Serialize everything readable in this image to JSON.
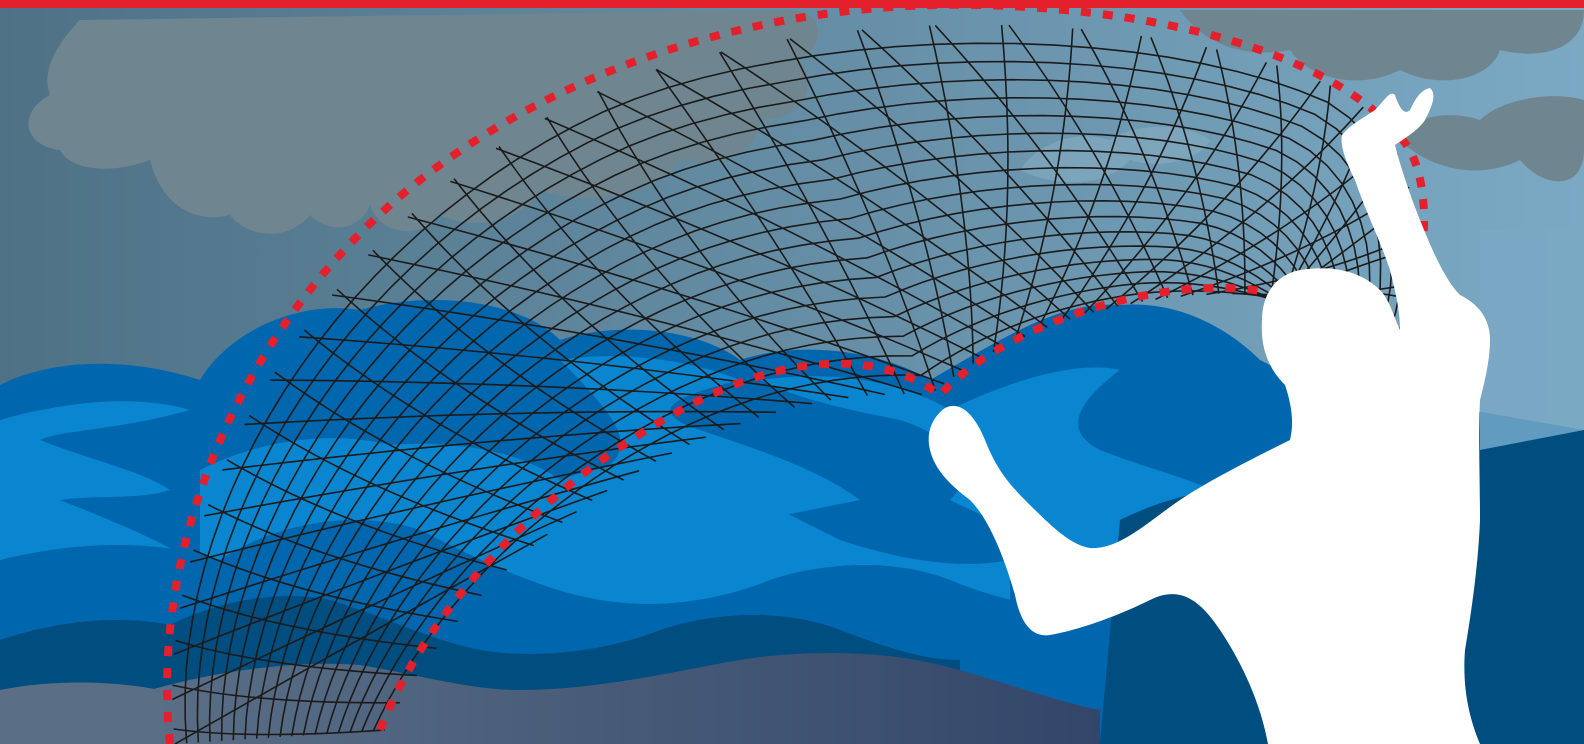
{
  "illustration": {
    "subject": "fisherman-casting-net",
    "colors": {
      "sky_left": "#4e7185",
      "sky_right": "#7ba9c4",
      "cloud": "#6f8690",
      "accent_red": "#e3202b",
      "wave_light": "#0a86d0",
      "wave_mid": "#0066ad",
      "wave_deep": "#004d80",
      "wave_dark": "#3b4e70",
      "net_line": "#1b1b1b",
      "silhouette": "#ffffff"
    },
    "icons": [
      "net-icon",
      "person-silhouette-icon",
      "cloud-icon",
      "wave-icon"
    ]
  }
}
